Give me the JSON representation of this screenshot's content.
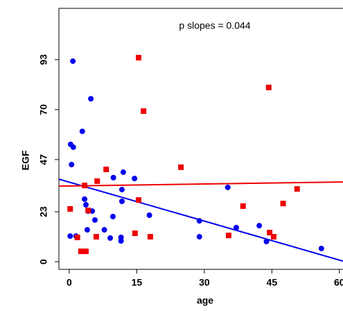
{
  "chart_data": {
    "type": "scatter",
    "xlabel": "age",
    "ylabel": "EGF",
    "annotation": "p slopes = 0.044",
    "xlim": [
      -2.3,
      60.8
    ],
    "ylim": [
      -3.5,
      116.6
    ],
    "xticks": [
      0,
      15,
      30,
      45,
      60
    ],
    "yticks": [
      0,
      23,
      47,
      70,
      93
    ],
    "series": [
      {
        "color": "#0000ee",
        "marker": "circle",
        "x": [
          0.8,
          0.3,
          0.9,
          0.5,
          2.9,
          4.8,
          0.2,
          1.5,
          3.4,
          3.7,
          4.2,
          5.1,
          5.7,
          4.0,
          7.8,
          9.1,
          9.7,
          9.8,
          11.5,
          11.5,
          12.0,
          11.7,
          11.7,
          14.5,
          17.8,
          28.9,
          28.9,
          35.2,
          37.1,
          42.2,
          43.8,
          56.0
        ],
        "values": [
          92.3,
          54.0,
          52.7,
          44.7,
          60.0,
          75.0,
          11.8,
          11.8,
          28.8,
          26.2,
          23.3,
          23.3,
          19.2,
          14.7,
          14.7,
          10.9,
          20.8,
          38.7,
          11.2,
          9.6,
          41.2,
          33.2,
          27.8,
          38.3,
          21.4,
          18.8,
          11.5,
          34.2,
          15.7,
          16.6,
          9.3,
          6.1
        ],
        "fit": {
          "x": [
            -2.3,
            60.8
          ],
          "values": [
            38.0,
            0.3
          ]
        }
      },
      {
        "color": "#ee0000",
        "marker": "square",
        "x": [
          15.4,
          44.3,
          16.5,
          8.2,
          24.8,
          6.2,
          3.4,
          0.2,
          15.4,
          4.2,
          50.6,
          38.6,
          47.5,
          1.8,
          2.6,
          3.7,
          6.0,
          14.6,
          18.0,
          35.4,
          44.5,
          45.4
        ],
        "values": [
          93.9,
          80.2,
          69.3,
          42.5,
          43.5,
          37.1,
          35.1,
          24.3,
          28.4,
          23.6,
          33.5,
          25.6,
          26.8,
          11.2,
          4.8,
          4.8,
          11.5,
          13.1,
          11.5,
          12.1,
          13.4,
          11.5
        ],
        "fit": {
          "x": [
            -2.3,
            60.8
          ],
          "values": [
            34.8,
            36.7
          ]
        }
      }
    ]
  }
}
